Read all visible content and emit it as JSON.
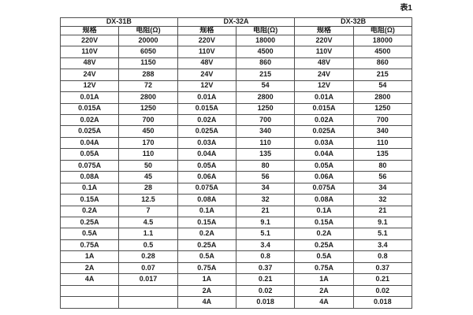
{
  "caption": "表1",
  "table": {
    "col_headers": {
      "spec": "规格",
      "resistance": "电阻(Ω)"
    },
    "groups": [
      {
        "name": "DX-31B",
        "rows": [
          [
            "220V",
            "20000"
          ],
          [
            "110V",
            "6050"
          ],
          [
            "48V",
            "1150"
          ],
          [
            "24V",
            "288"
          ],
          [
            "12V",
            "72"
          ],
          [
            "0.01A",
            "2800"
          ],
          [
            "0.015A",
            "1250"
          ],
          [
            "0.02A",
            "700"
          ],
          [
            "0.025A",
            "450"
          ],
          [
            "0.04A",
            "170"
          ],
          [
            "0.05A",
            "110"
          ],
          [
            "0.075A",
            "50"
          ],
          [
            "0.08A",
            "45"
          ],
          [
            "0.1A",
            "28"
          ],
          [
            "0.15A",
            "12.5"
          ],
          [
            "0.2A",
            "7"
          ],
          [
            "0.25A",
            "4.5"
          ],
          [
            "0.5A",
            "1.1"
          ],
          [
            "0.75A",
            "0.5"
          ],
          [
            "1A",
            "0.28"
          ],
          [
            "2A",
            "0.07"
          ],
          [
            "4A",
            "0.017"
          ],
          [
            "",
            ""
          ],
          [
            "",
            ""
          ]
        ]
      },
      {
        "name": "DX-32A",
        "rows": [
          [
            "220V",
            "18000"
          ],
          [
            "110V",
            "4500"
          ],
          [
            "48V",
            "860"
          ],
          [
            "24V",
            "215"
          ],
          [
            "12V",
            "54"
          ],
          [
            "0.01A",
            "2800"
          ],
          [
            "0.015A",
            "1250"
          ],
          [
            "0.02A",
            "700"
          ],
          [
            "0.025A",
            "340"
          ],
          [
            "0.03A",
            "110"
          ],
          [
            "0.04A",
            "135"
          ],
          [
            "0.05A",
            "80"
          ],
          [
            "0.06A",
            "56"
          ],
          [
            "0.075A",
            "34"
          ],
          [
            "0.08A",
            "32"
          ],
          [
            "0.1A",
            "21"
          ],
          [
            "0.15A",
            "9.1"
          ],
          [
            "0.2A",
            "5.1"
          ],
          [
            "0.25A",
            "3.4"
          ],
          [
            "0.5A",
            "0.8"
          ],
          [
            "0.75A",
            "0.37"
          ],
          [
            "1A",
            "0.21"
          ],
          [
            "2A",
            "0.02"
          ],
          [
            "4A",
            "0.018"
          ]
        ]
      },
      {
        "name": "DX-32B",
        "rows": [
          [
            "220V",
            "18000"
          ],
          [
            "110V",
            "4500"
          ],
          [
            "48V",
            "860"
          ],
          [
            "24V",
            "215"
          ],
          [
            "12V",
            "54"
          ],
          [
            "0.01A",
            "2800"
          ],
          [
            "0.015A",
            "1250"
          ],
          [
            "0.02A",
            "700"
          ],
          [
            "0.025A",
            "340"
          ],
          [
            "0.03A",
            "110"
          ],
          [
            "0.04A",
            "135"
          ],
          [
            "0.05A",
            "80"
          ],
          [
            "0.06A",
            "56"
          ],
          [
            "0.075A",
            "34"
          ],
          [
            "0.08A",
            "32"
          ],
          [
            "0.1A",
            "21"
          ],
          [
            "0.15A",
            "9.1"
          ],
          [
            "0.2A",
            "5.1"
          ],
          [
            "0.25A",
            "3.4"
          ],
          [
            "0.5A",
            "0.8"
          ],
          [
            "0.75A",
            "0.37"
          ],
          [
            "1A",
            "0.21"
          ],
          [
            "2A",
            "0.02"
          ],
          [
            "4A",
            "0.018"
          ]
        ]
      }
    ]
  }
}
